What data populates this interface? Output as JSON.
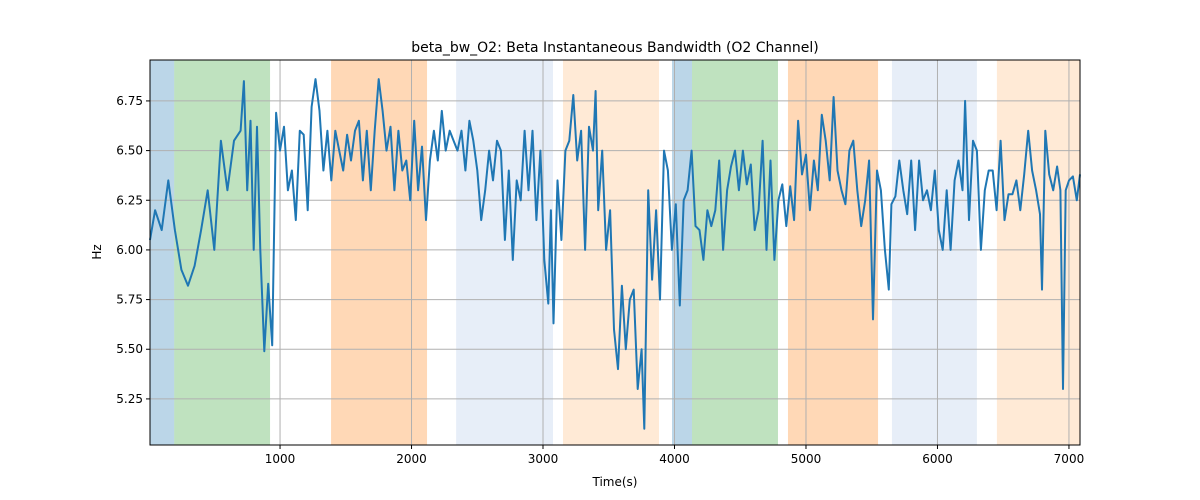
{
  "chart_data": {
    "type": "line",
    "title": "beta_bw_O2: Beta Instantaneous Bandwidth (O2 Channel)",
    "xlabel": "Time(s)",
    "ylabel": "Hz",
    "xlim": [
      11,
      7084
    ],
    "ylim": [
      5.018,
      6.956
    ],
    "grid": true,
    "xticks": [
      1000,
      2000,
      3000,
      4000,
      5000,
      6000,
      7000
    ],
    "xtick_labels": [
      "1000",
      "2000",
      "3000",
      "4000",
      "5000",
      "6000",
      "7000"
    ],
    "yticks": [
      5.25,
      5.5,
      5.75,
      6.0,
      6.25,
      6.5,
      6.75
    ],
    "ytick_labels": [
      "5.25",
      "5.50",
      "5.75",
      "6.00",
      "6.25",
      "6.50",
      "6.75"
    ],
    "line_color": "#1f77b4",
    "spans": [
      {
        "start": 11,
        "end": 195,
        "color": "#1f77b4",
        "alpha": 0.3
      },
      {
        "start": 195,
        "end": 924,
        "color": "#2ca02c",
        "alpha": 0.3
      },
      {
        "start": 1388,
        "end": 2118,
        "color": "#ff7f0e",
        "alpha": 0.3
      },
      {
        "start": 2339,
        "end": 3076,
        "color": "#aec7e8",
        "alpha": 0.3
      },
      {
        "start": 3152,
        "end": 3882,
        "color": "#ffbb78",
        "alpha": 0.3
      },
      {
        "start": 3981,
        "end": 4133,
        "color": "#1f77b4",
        "alpha": 0.3
      },
      {
        "start": 4133,
        "end": 4787,
        "color": "#2ca02c",
        "alpha": 0.3
      },
      {
        "start": 4863,
        "end": 5548,
        "color": "#ff7f0e",
        "alpha": 0.3
      },
      {
        "start": 5654,
        "end": 6300,
        "color": "#aec7e8",
        "alpha": 0.3
      },
      {
        "start": 6452,
        "end": 7084,
        "color": "#ffbb78",
        "alpha": 0.3
      }
    ],
    "x": [
      11,
      50,
      100,
      150,
      200,
      250,
      300,
      350,
      400,
      450,
      500,
      550,
      600,
      650,
      700,
      725,
      750,
      775,
      800,
      825,
      850,
      880,
      910,
      940,
      970,
      1000,
      1030,
      1060,
      1090,
      1120,
      1150,
      1180,
      1210,
      1240,
      1270,
      1300,
      1330,
      1360,
      1390,
      1420,
      1450,
      1480,
      1510,
      1540,
      1570,
      1600,
      1630,
      1660,
      1690,
      1720,
      1750,
      1780,
      1810,
      1840,
      1870,
      1900,
      1930,
      1960,
      1990,
      2020,
      2050,
      2080,
      2110,
      2140,
      2170,
      2200,
      2230,
      2260,
      2290,
      2320,
      2350,
      2380,
      2410,
      2440,
      2470,
      2500,
      2530,
      2560,
      2590,
      2620,
      2650,
      2680,
      2710,
      2740,
      2770,
      2800,
      2830,
      2860,
      2890,
      2920,
      2950,
      2980,
      3010,
      3040,
      3060,
      3080,
      3110,
      3140,
      3170,
      3200,
      3230,
      3260,
      3290,
      3320,
      3350,
      3380,
      3400,
      3420,
      3450,
      3480,
      3510,
      3540,
      3570,
      3600,
      3630,
      3660,
      3690,
      3720,
      3750,
      3770,
      3800,
      3830,
      3860,
      3890,
      3920,
      3950,
      3980,
      4010,
      4040,
      4070,
      4100,
      4130,
      4160,
      4190,
      4220,
      4250,
      4280,
      4310,
      4340,
      4370,
      4400,
      4430,
      4460,
      4490,
      4520,
      4550,
      4580,
      4610,
      4640,
      4670,
      4700,
      4730,
      4760,
      4790,
      4820,
      4850,
      4880,
      4910,
      4940,
      4970,
      5000,
      5030,
      5060,
      5090,
      5120,
      5150,
      5180,
      5210,
      5240,
      5270,
      5300,
      5330,
      5360,
      5390,
      5420,
      5450,
      5480,
      5510,
      5540,
      5570,
      5600,
      5630,
      5650,
      5680,
      5710,
      5740,
      5770,
      5800,
      5830,
      5860,
      5890,
      5920,
      5950,
      5980,
      6010,
      6040,
      6070,
      6100,
      6130,
      6160,
      6190,
      6210,
      6240,
      6270,
      6300,
      6330,
      6360,
      6390,
      6420,
      6450,
      6480,
      6510,
      6540,
      6570,
      6600,
      6630,
      6660,
      6690,
      6720,
      6750,
      6780,
      6795,
      6820,
      6850,
      6880,
      6910,
      6935,
      6955,
      6975,
      7000,
      7030,
      7060,
      7084
    ],
    "y": [
      6.05,
      6.2,
      6.1,
      6.35,
      6.1,
      5.9,
      5.82,
      5.92,
      6.1,
      6.3,
      6.0,
      6.55,
      6.3,
      6.55,
      6.6,
      6.85,
      6.3,
      6.65,
      6.0,
      6.62,
      6.0,
      5.49,
      5.83,
      5.52,
      6.69,
      6.5,
      6.62,
      6.3,
      6.4,
      6.15,
      6.6,
      6.58,
      6.2,
      6.72,
      6.86,
      6.7,
      6.4,
      6.6,
      6.35,
      6.6,
      6.5,
      6.4,
      6.58,
      6.45,
      6.6,
      6.65,
      6.35,
      6.6,
      6.3,
      6.6,
      6.86,
      6.7,
      6.5,
      6.62,
      6.3,
      6.6,
      6.4,
      6.45,
      6.25,
      6.65,
      6.3,
      6.52,
      6.15,
      6.45,
      6.6,
      6.45,
      6.7,
      6.5,
      6.6,
      6.55,
      6.5,
      6.6,
      6.4,
      6.65,
      6.55,
      6.4,
      6.15,
      6.3,
      6.5,
      6.35,
      6.55,
      6.5,
      6.05,
      6.4,
      5.95,
      6.35,
      6.25,
      6.6,
      6.3,
      6.6,
      6.15,
      6.5,
      5.95,
      5.73,
      6.2,
      5.63,
      6.35,
      6.05,
      6.5,
      6.55,
      6.78,
      6.45,
      6.6,
      6.0,
      6.62,
      6.5,
      6.8,
      6.2,
      6.5,
      6.0,
      6.2,
      5.6,
      5.4,
      5.82,
      5.5,
      5.75,
      5.8,
      5.3,
      5.5,
      5.1,
      6.3,
      5.85,
      6.2,
      5.75,
      6.5,
      6.4,
      6.0,
      6.23,
      5.72,
      6.25,
      6.3,
      6.5,
      6.12,
      6.1,
      5.95,
      6.2,
      6.12,
      6.2,
      6.45,
      6.0,
      6.3,
      6.42,
      6.5,
      6.3,
      6.5,
      6.33,
      6.43,
      6.1,
      6.2,
      6.55,
      6.0,
      6.45,
      5.95,
      6.25,
      6.33,
      6.12,
      6.32,
      6.15,
      6.65,
      6.38,
      6.48,
      6.2,
      6.45,
      6.3,
      6.68,
      6.55,
      6.35,
      6.77,
      6.4,
      6.3,
      6.23,
      6.5,
      6.55,
      6.3,
      6.12,
      6.25,
      6.45,
      5.65,
      6.4,
      6.3,
      6.0,
      5.8,
      6.23,
      6.27,
      6.45,
      6.3,
      6.18,
      6.45,
      6.1,
      6.45,
      6.25,
      6.3,
      6.2,
      6.4,
      6.1,
      6.0,
      6.3,
      6.0,
      6.35,
      6.45,
      6.3,
      6.75,
      6.15,
      6.55,
      6.5,
      6.0,
      6.3,
      6.4,
      6.4,
      6.2,
      6.55,
      6.15,
      6.28,
      6.28,
      6.35,
      6.2,
      6.38,
      6.6,
      6.4,
      6.3,
      6.18,
      5.8,
      6.6,
      6.38,
      6.3,
      6.42,
      6.3,
      5.3,
      6.3,
      6.35,
      6.37,
      6.25,
      6.38
    ]
  }
}
